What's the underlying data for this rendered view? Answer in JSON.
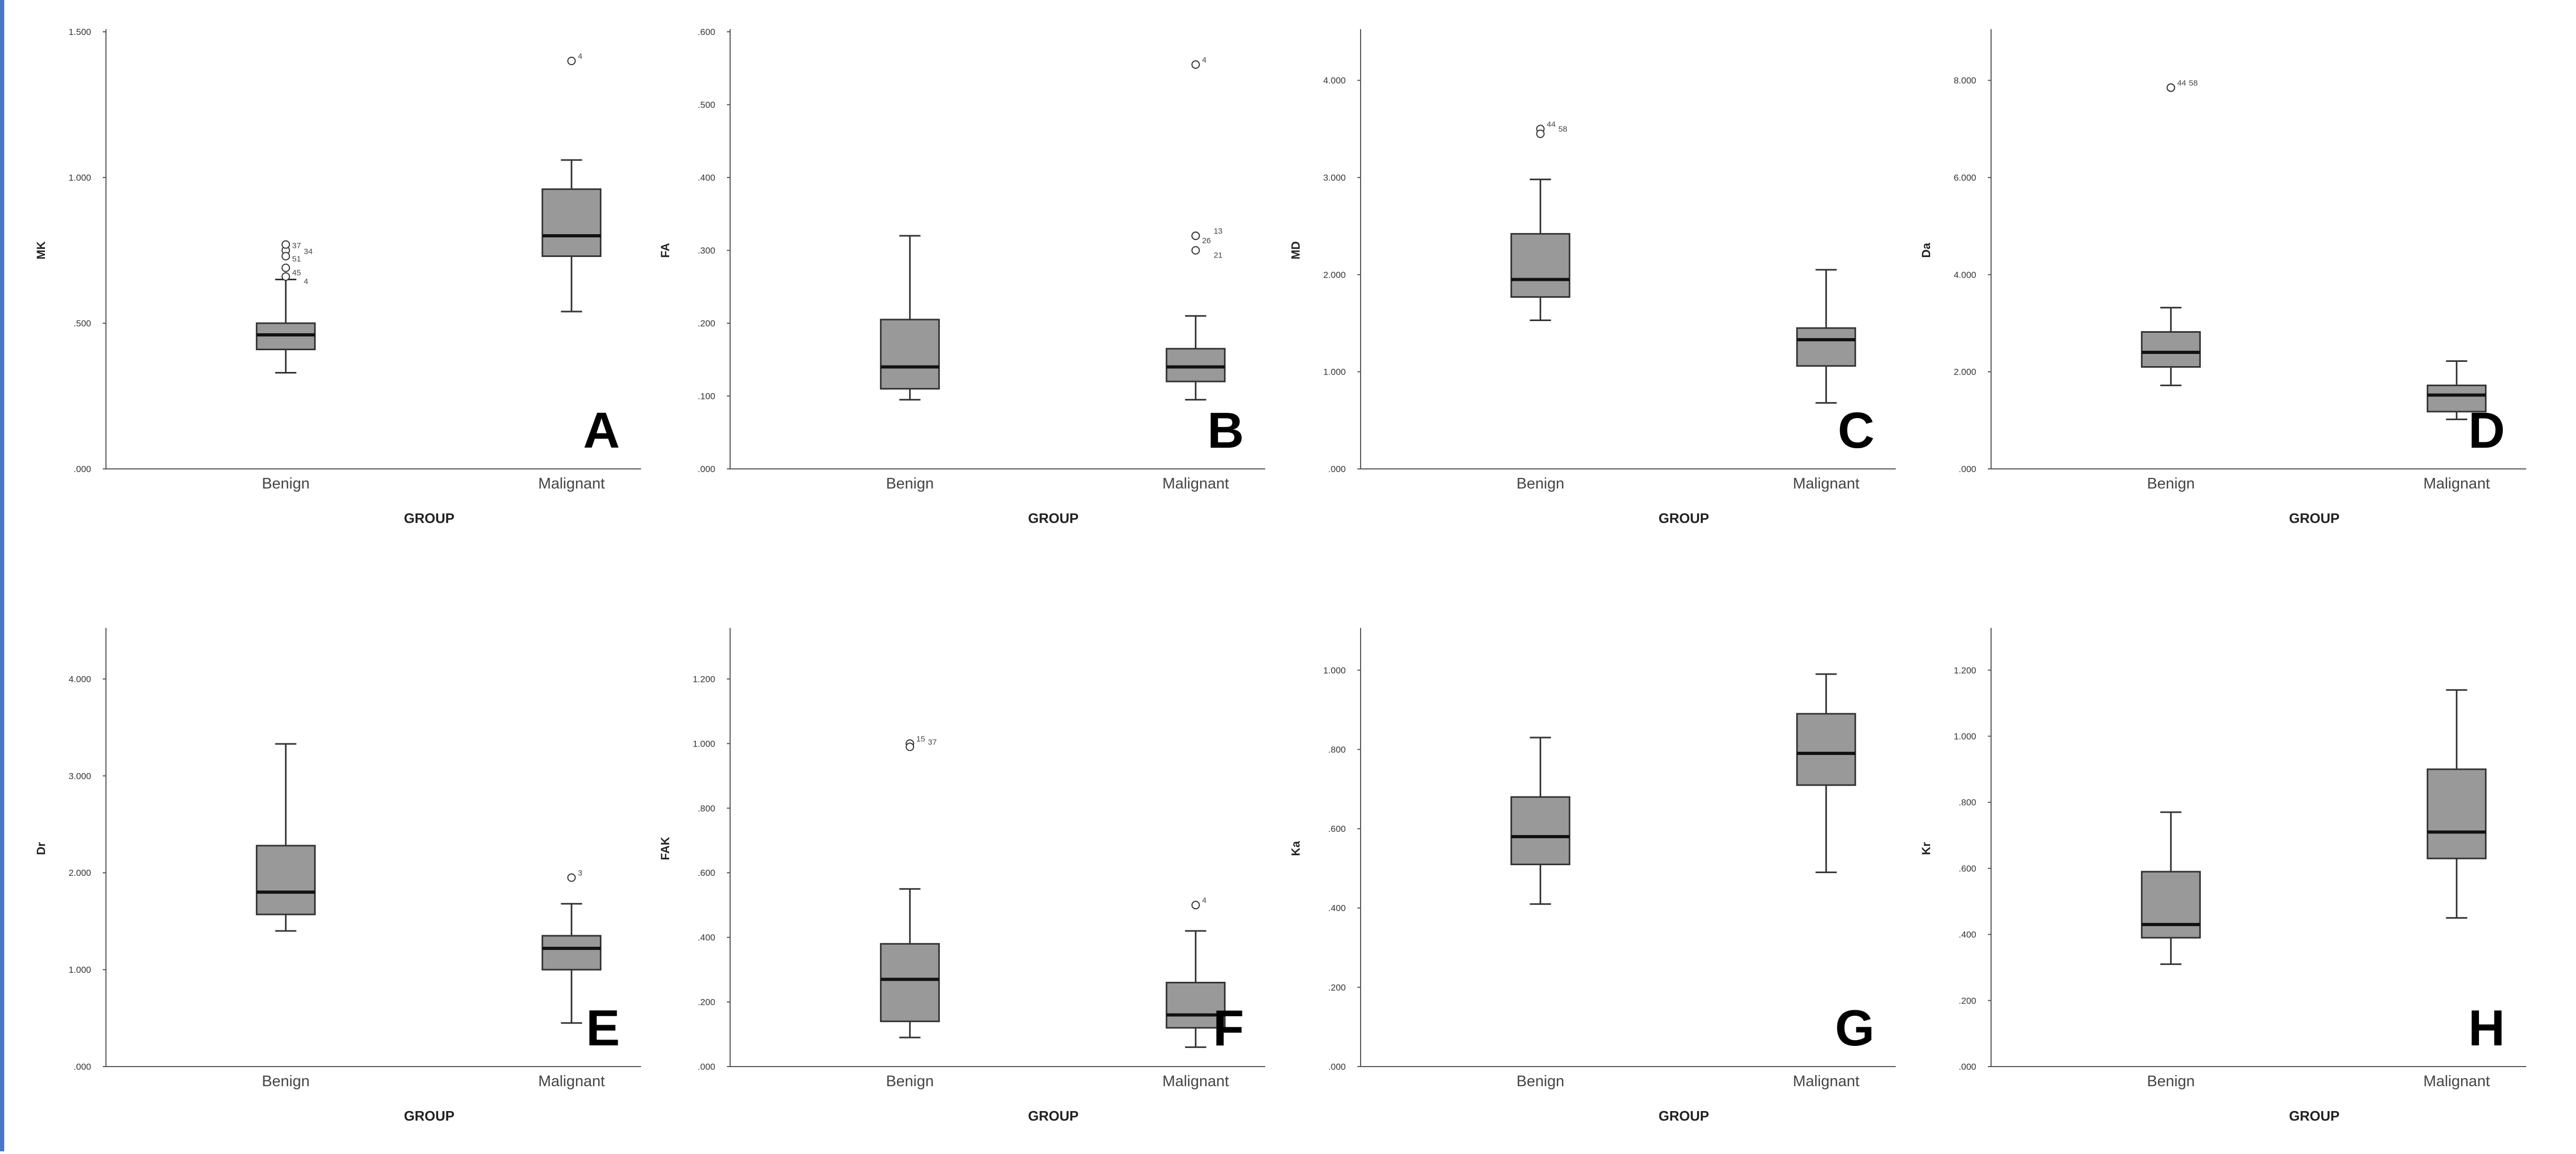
{
  "chart_data": [
    {
      "type": "boxplot",
      "panel_letter": "A",
      "xlabel": "GROUP",
      "ylabel": "MK",
      "categories": [
        "Benign",
        "Malignant"
      ],
      "ylim": [
        0,
        1.5
      ],
      "yticks": [
        0,
        0.5,
        1.0,
        1.5
      ],
      "ytick_labels": [
        ".000",
        ".500",
        "1.000",
        "1.500"
      ],
      "boxes": [
        {
          "category": "Benign",
          "whisker_low": 0.33,
          "q1": 0.41,
          "median": 0.46,
          "q3": 0.5,
          "whisker_high": 0.65,
          "outliers": [
            {
              "value": 0.75,
              "label": "37"
            },
            {
              "value": 0.73,
              "label": "34"
            },
            {
              "value": 0.69,
              "label": "45"
            },
            {
              "value": 0.66,
              "label": "4"
            },
            {
              "value": 0.77,
              "label": "51"
            }
          ]
        },
        {
          "category": "Malignant",
          "whisker_low": 0.54,
          "q1": 0.73,
          "median": 0.8,
          "q3": 0.96,
          "whisker_high": 1.06,
          "outliers": [
            {
              "value": 1.4,
              "label": "4"
            }
          ]
        }
      ]
    },
    {
      "type": "boxplot",
      "panel_letter": "B",
      "xlabel": "GROUP",
      "ylabel": "FA",
      "categories": [
        "Benign",
        "Malignant"
      ],
      "ylim": [
        0,
        0.6
      ],
      "yticks": [
        0,
        0.1,
        0.2,
        0.3,
        0.4,
        0.5,
        0.6
      ],
      "ytick_labels": [
        ".000",
        ".100",
        ".200",
        ".300",
        ".400",
        ".500",
        ".600"
      ],
      "boxes": [
        {
          "category": "Benign",
          "whisker_low": 0.095,
          "q1": 0.11,
          "median": 0.14,
          "q3": 0.205,
          "whisker_high": 0.32,
          "outliers": []
        },
        {
          "category": "Malignant",
          "whisker_low": 0.095,
          "q1": 0.12,
          "median": 0.14,
          "q3": 0.165,
          "whisker_high": 0.21,
          "outliers": [
            {
              "value": 0.555,
              "label": "4"
            },
            {
              "value": 0.32,
              "label": "13"
            },
            {
              "value": 0.32,
              "label": "26"
            },
            {
              "value": 0.3,
              "label": "21"
            }
          ]
        }
      ]
    },
    {
      "type": "boxplot",
      "panel_letter": "C",
      "xlabel": "GROUP",
      "ylabel": "MD",
      "categories": [
        "Benign",
        "Malignant"
      ],
      "ylim": [
        0,
        4.5
      ],
      "yticks": [
        0,
        1,
        2,
        3,
        4
      ],
      "ytick_labels": [
        ".000",
        "1.000",
        "2.000",
        "3.000",
        "4.000"
      ],
      "boxes": [
        {
          "category": "Benign",
          "whisker_low": 1.53,
          "q1": 1.77,
          "median": 1.95,
          "q3": 2.42,
          "whisker_high": 2.98,
          "outliers": [
            {
              "value": 3.5,
              "label": "44"
            },
            {
              "value": 3.45,
              "label": "58"
            }
          ]
        },
        {
          "category": "Malignant",
          "whisker_low": 0.68,
          "q1": 1.06,
          "median": 1.33,
          "q3": 1.45,
          "whisker_high": 2.05,
          "outliers": []
        }
      ]
    },
    {
      "type": "boxplot",
      "panel_letter": "D",
      "xlabel": "GROUP",
      "ylabel": "Da",
      "categories": [
        "Benign",
        "Malignant"
      ],
      "ylim": [
        0,
        9
      ],
      "yticks": [
        0,
        2,
        4,
        6,
        8
      ],
      "ytick_labels": [
        ".000",
        "2.000",
        "4.000",
        "6.000",
        "8.000"
      ],
      "boxes": [
        {
          "category": "Benign",
          "whisker_low": 1.72,
          "q1": 2.1,
          "median": 2.4,
          "q3": 2.82,
          "whisker_high": 3.32,
          "outliers": [
            {
              "value": 7.85,
              "label": "44"
            },
            {
              "value": 7.85,
              "label": "58"
            }
          ]
        },
        {
          "category": "Malignant",
          "whisker_low": 1.02,
          "q1": 1.18,
          "median": 1.52,
          "q3": 1.72,
          "whisker_high": 2.22,
          "outliers": []
        }
      ]
    },
    {
      "type": "boxplot",
      "panel_letter": "E",
      "xlabel": "GROUP",
      "ylabel": "Dr",
      "categories": [
        "Benign",
        "Malignant"
      ],
      "ylim": [
        0,
        4.5
      ],
      "yticks": [
        0,
        1,
        2,
        3,
        4
      ],
      "ytick_labels": [
        ".000",
        "1.000",
        "2.000",
        "3.000",
        "4.000"
      ],
      "boxes": [
        {
          "category": "Benign",
          "whisker_low": 1.4,
          "q1": 1.57,
          "median": 1.8,
          "q3": 2.28,
          "whisker_high": 3.33,
          "outliers": []
        },
        {
          "category": "Malignant",
          "whisker_low": 0.45,
          "q1": 1.0,
          "median": 1.22,
          "q3": 1.35,
          "whisker_high": 1.68,
          "outliers": [
            {
              "value": 1.95,
              "label": "3"
            }
          ]
        }
      ]
    },
    {
      "type": "boxplot",
      "panel_letter": "F",
      "xlabel": "GROUP",
      "ylabel": "FAK",
      "categories": [
        "Benign",
        "Malignant"
      ],
      "ylim": [
        0,
        1.35
      ],
      "yticks": [
        0,
        0.2,
        0.4,
        0.6,
        0.8,
        1.0,
        1.2
      ],
      "ytick_labels": [
        ".000",
        ".200",
        ".400",
        ".600",
        ".800",
        "1.000",
        "1.200"
      ],
      "boxes": [
        {
          "category": "Benign",
          "whisker_low": 0.09,
          "q1": 0.14,
          "median": 0.27,
          "q3": 0.38,
          "whisker_high": 0.55,
          "outliers": [
            {
              "value": 1.0,
              "label": "15"
            },
            {
              "value": 0.99,
              "label": "37"
            }
          ]
        },
        {
          "category": "Malignant",
          "whisker_low": 0.06,
          "q1": 0.12,
          "median": 0.16,
          "q3": 0.26,
          "whisker_high": 0.42,
          "outliers": [
            {
              "value": 0.5,
              "label": "4"
            }
          ]
        }
      ]
    },
    {
      "type": "boxplot",
      "panel_letter": "G",
      "xlabel": "GROUP",
      "ylabel": "Ka",
      "categories": [
        "Benign",
        "Malignant"
      ],
      "ylim": [
        0,
        1.1
      ],
      "yticks": [
        0,
        0.2,
        0.4,
        0.6,
        0.8,
        1.0
      ],
      "ytick_labels": [
        ".000",
        ".200",
        ".400",
        ".600",
        ".800",
        "1.000"
      ],
      "boxes": [
        {
          "category": "Benign",
          "whisker_low": 0.41,
          "q1": 0.51,
          "median": 0.58,
          "q3": 0.68,
          "whisker_high": 0.83,
          "outliers": []
        },
        {
          "category": "Malignant",
          "whisker_low": 0.49,
          "q1": 0.71,
          "median": 0.79,
          "q3": 0.89,
          "whisker_high": 0.99,
          "outliers": []
        }
      ]
    },
    {
      "type": "boxplot",
      "panel_letter": "H",
      "xlabel": "GROUP",
      "ylabel": "Kr",
      "categories": [
        "Benign",
        "Malignant"
      ],
      "ylim": [
        0,
        1.32
      ],
      "yticks": [
        0,
        0.2,
        0.4,
        0.6,
        0.8,
        1.0,
        1.2
      ],
      "ytick_labels": [
        ".000",
        ".200",
        ".400",
        ".600",
        ".800",
        "1.000",
        "1.200"
      ],
      "boxes": [
        {
          "category": "Benign",
          "whisker_low": 0.31,
          "q1": 0.39,
          "median": 0.43,
          "q3": 0.59,
          "whisker_high": 0.77,
          "outliers": []
        },
        {
          "category": "Malignant",
          "whisker_low": 0.45,
          "q1": 0.63,
          "median": 0.71,
          "q3": 0.9,
          "whisker_high": 1.14,
          "outliers": []
        }
      ]
    }
  ]
}
